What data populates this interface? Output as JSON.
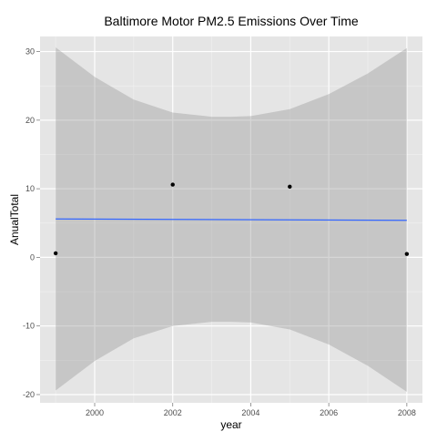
{
  "chart_data": {
    "type": "scatter",
    "title": "Baltimore Motor PM2.5 Emissions Over Time",
    "xlabel": "year",
    "ylabel": "AnualTotal",
    "xlim": [
      1998.6,
      2008.4
    ],
    "ylim": [
      -21.2,
      32.2
    ],
    "x_ticks": [
      2000,
      2002,
      2004,
      2006,
      2008
    ],
    "y_ticks": [
      -20,
      -10,
      0,
      10,
      20,
      30
    ],
    "x_tick_labels": [
      "2000",
      "2002",
      "2004",
      "2006",
      "2008"
    ],
    "y_tick_labels": [
      "-20",
      "-10",
      "0",
      "10",
      "20",
      "30"
    ],
    "grid": true,
    "legend": "none",
    "points": [
      {
        "x": 1999,
        "y": 0.6
      },
      {
        "x": 2002,
        "y": 10.6
      },
      {
        "x": 2005,
        "y": 10.3
      },
      {
        "x": 2008,
        "y": 0.5
      }
    ],
    "fit_line": {
      "method": "linear",
      "x": [
        1999,
        2008
      ],
      "y": [
        5.6,
        5.4
      ]
    },
    "confidence_band": {
      "x": [
        1999,
        2000,
        2001,
        2002,
        2003,
        2003.5,
        2004,
        2005,
        2006,
        2007,
        2008
      ],
      "upper": [
        30.6,
        26.3,
        23.0,
        21.1,
        20.5,
        20.5,
        20.6,
        21.6,
        23.8,
        26.8,
        30.5
      ],
      "lower": [
        -19.4,
        -15.1,
        -11.8,
        -10.0,
        -9.4,
        -9.4,
        -9.5,
        -10.5,
        -12.7,
        -15.8,
        -19.6
      ]
    },
    "colors": {
      "panel_background": "#e5e5e5",
      "grid_major": "#ffffff",
      "grid_minor": "#f2f2f2",
      "band_fill": "#999999",
      "line": "#3366ff",
      "point": "#000000"
    }
  }
}
